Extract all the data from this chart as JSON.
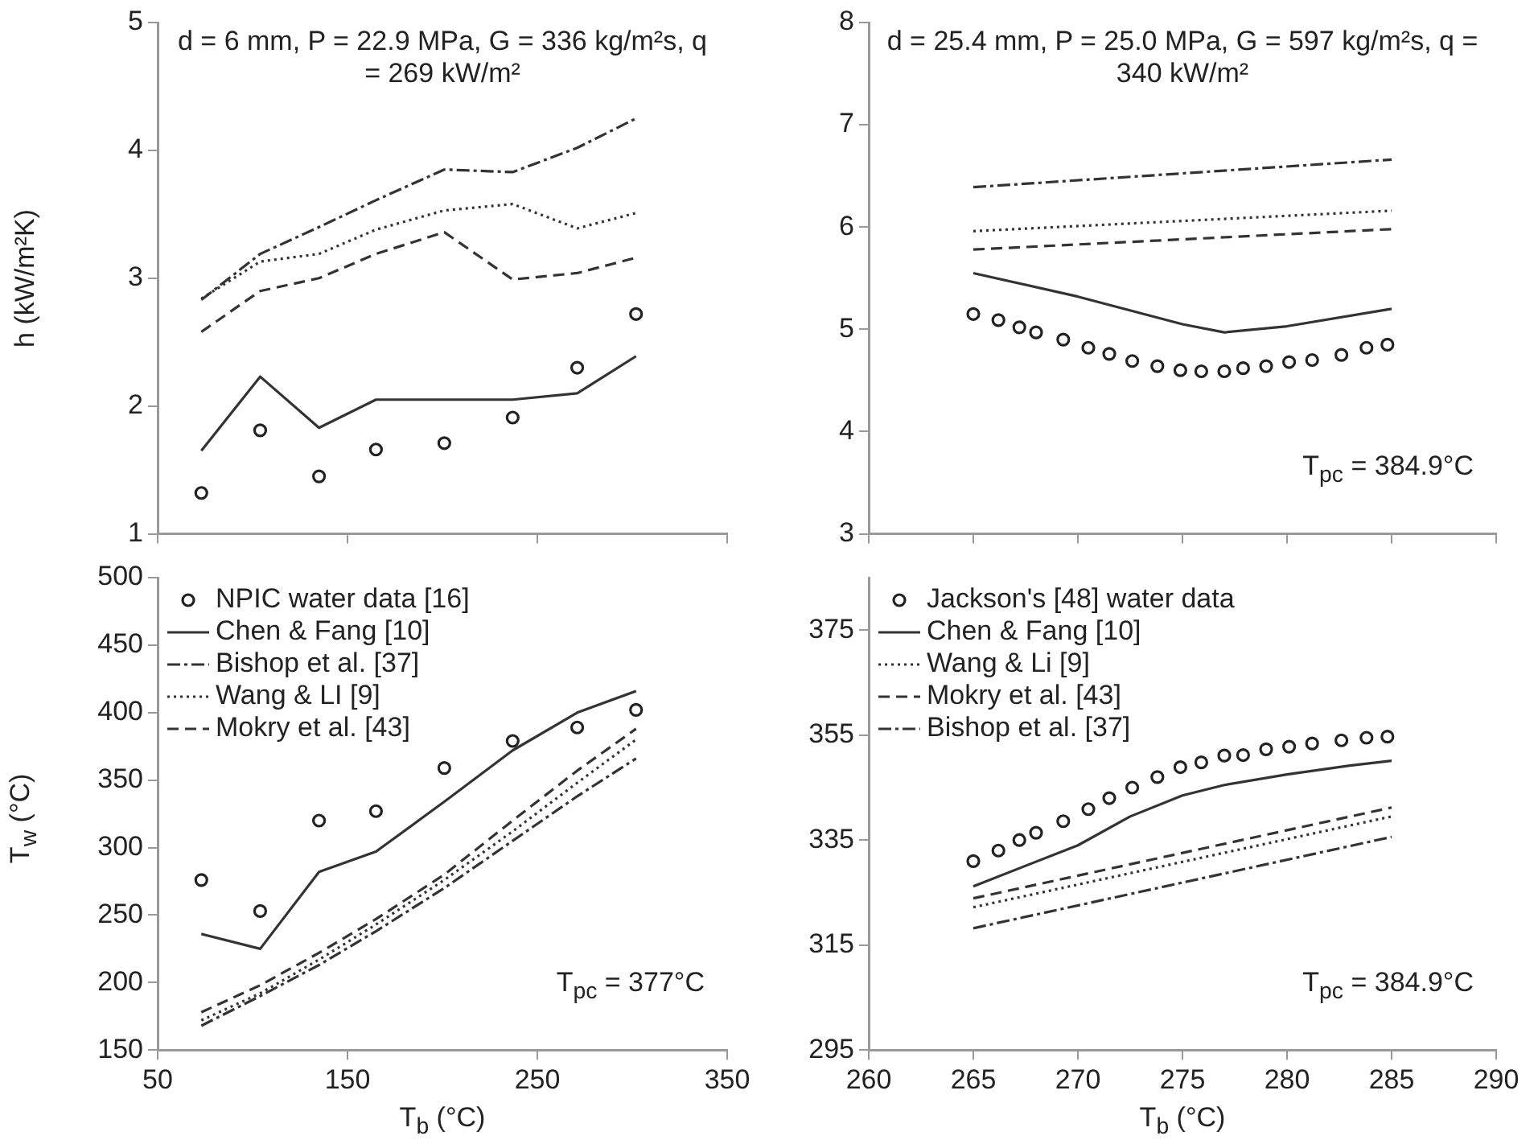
{
  "chart_data": [
    {
      "type": "line",
      "ylabel": "h (kW/m²K)",
      "annotations": [
        "d = 6 mm, P = 22.9 MPa, G = 336 kg/m²s, q = 269 kW/m²"
      ],
      "x": [
        73,
        104,
        135,
        165,
        201,
        237,
        271,
        302
      ],
      "series": [
        {
          "type": "scatter",
          "marker": "circle",
          "color": "#222222",
          "values": [
            1.32,
            1.81,
            1.45,
            1.66,
            1.71,
            1.91,
            2.3,
            2.72
          ]
        },
        {
          "line_style": "solid",
          "color": "#333333",
          "values": [
            1.65,
            2.23,
            1.83,
            2.05,
            2.05,
            2.05,
            2.1,
            2.39
          ]
        },
        {
          "line_style": "dashdot",
          "color": "#333333",
          "values": [
            2.83,
            3.19,
            3.4,
            3.61,
            3.85,
            3.83,
            4.02,
            4.25
          ]
        },
        {
          "line_style": "dotted",
          "color": "#333333",
          "values": [
            2.84,
            3.13,
            3.19,
            3.38,
            3.53,
            3.58,
            3.39,
            3.51
          ]
        },
        {
          "line_style": "dashed",
          "color": "#333333",
          "values": [
            2.58,
            2.9,
            3.0,
            3.19,
            3.36,
            2.99,
            3.04,
            3.16
          ]
        }
      ],
      "xlim": [
        50,
        350
      ],
      "xticks": [
        50,
        150,
        250,
        350
      ],
      "ylim": [
        1,
        5
      ],
      "yticks": [
        1,
        2,
        3,
        4,
        5
      ],
      "tick_labels": "y",
      "grid": false,
      "legend": false
    },
    {
      "type": "line",
      "annotations": [
        "d = 25.4 mm, P = 25.0 MPa, G = 597 kg/m²s, q = 340 kW/m²",
        "T$_{pc}$ = 384.9°C"
      ],
      "series": [
        {
          "type": "scatter",
          "marker": "circle",
          "color": "#222222",
          "x": [
            265,
            266.2,
            267.2,
            268,
            269.3,
            270.5,
            271.5,
            272.6,
            273.8,
            274.9,
            275.9,
            277,
            277.9,
            279,
            280.1,
            281.2,
            282.6,
            283.8,
            284.8
          ],
          "values": [
            5.15,
            5.09,
            5.02,
            4.97,
            4.9,
            4.82,
            4.76,
            4.69,
            4.64,
            4.6,
            4.59,
            4.59,
            4.62,
            4.64,
            4.68,
            4.7,
            4.75,
            4.82,
            4.85
          ]
        },
        {
          "line_style": "solid",
          "color": "#333333",
          "x": [
            265,
            270,
            275,
            277,
            280,
            285
          ],
          "values": [
            5.55,
            5.32,
            5.05,
            4.97,
            5.03,
            5.2
          ]
        },
        {
          "line_style": "dashdot",
          "color": "#333333",
          "x": [
            265,
            285
          ],
          "values": [
            6.39,
            6.66
          ]
        },
        {
          "line_style": "dotted",
          "color": "#333333",
          "x": [
            265,
            285
          ],
          "values": [
            5.96,
            6.16
          ]
        },
        {
          "line_style": "dashed",
          "color": "#333333",
          "x": [
            265,
            285
          ],
          "values": [
            5.78,
            5.98
          ]
        }
      ],
      "xlim": [
        260,
        290
      ],
      "xticks": [
        260,
        265,
        270,
        275,
        280,
        285,
        290
      ],
      "ylim": [
        3,
        8
      ],
      "yticks": [
        3,
        4,
        5,
        6,
        7,
        8
      ],
      "tick_labels": "y",
      "grid": false,
      "legend": false
    },
    {
      "type": "line",
      "xlabel": "T$_{b}$ (°C)",
      "ylabel": "T$_{w}$ (°C)",
      "annotations": [
        "T$_{pc}$ = 377°C"
      ],
      "x": [
        73,
        104,
        135,
        165,
        201,
        237,
        271,
        302
      ],
      "series": [
        {
          "name": "NPIC water data [16]",
          "type": "scatter",
          "marker": "circle",
          "color": "#222222",
          "values": [
            276,
            253,
            320,
            327,
            359,
            379,
            389,
            402
          ]
        },
        {
          "name": "Chen & Fang [10]",
          "line_style": "solid",
          "color": "#333333",
          "values": [
            236,
            225,
            282,
            297,
            334,
            372,
            400,
            416
          ]
        },
        {
          "name": "Bishop et al. [37]",
          "line_style": "dashdot",
          "color": "#333333",
          "values": [
            168,
            190,
            213,
            238,
            270,
            305,
            338,
            366
          ]
        },
        {
          "name": "Wang & LI [9]",
          "line_style": "dotted",
          "color": "#333333",
          "values": [
            172,
            192,
            217,
            243,
            276,
            312,
            348,
            380
          ]
        },
        {
          "name": "Mokry et al. [43]",
          "line_style": "dashed",
          "color": "#333333",
          "values": [
            178,
            198,
            222,
            247,
            280,
            320,
            357,
            388
          ]
        }
      ],
      "xlim": [
        50,
        350
      ],
      "xticks": [
        50,
        150,
        250,
        350
      ],
      "ylim": [
        150,
        500
      ],
      "yticks": [
        150,
        200,
        250,
        300,
        350,
        400,
        450,
        500
      ],
      "grid": false,
      "legend": "top left"
    },
    {
      "type": "line",
      "xlabel": "T$_{b}$ (°C)",
      "annotations": [
        "T$_{pc}$ = 384.9°C"
      ],
      "series": [
        {
          "name": "Jackson's [48] water data",
          "type": "scatter",
          "marker": "circle",
          "color": "#222222",
          "x": [
            265,
            266.2,
            267.2,
            268,
            269.3,
            270.5,
            271.5,
            272.6,
            273.8,
            274.9,
            275.9,
            277,
            277.9,
            279,
            280.1,
            281.2,
            282.6,
            283.8,
            284.8
          ],
          "values": [
            331,
            333,
            335,
            336.4,
            338.6,
            340.9,
            343,
            345,
            347,
            348.9,
            349.8,
            351.1,
            351.2,
            352.3,
            352.8,
            353.4,
            354,
            354.5,
            354.7
          ]
        },
        {
          "name": "Chen & Fang [10]",
          "line_style": "solid",
          "color": "#333333",
          "x": [
            265,
            270,
            272.5,
            275,
            277,
            280,
            283,
            285
          ],
          "values": [
            326.2,
            334,
            339.5,
            343.5,
            345.5,
            347.5,
            349.2,
            350.1
          ]
        },
        {
          "name": "Wang & Li [9]",
          "line_style": "dotted",
          "color": "#333333",
          "x": [
            265,
            285
          ],
          "values": [
            322.2,
            339.5
          ]
        },
        {
          "name": "Mokry et al. [43]",
          "line_style": "dashed",
          "color": "#333333",
          "x": [
            265,
            285
          ],
          "values": [
            323.9,
            341.2
          ]
        },
        {
          "name": "Bishop et al. [37]",
          "line_style": "dashdot",
          "color": "#333333",
          "x": [
            265,
            285
          ],
          "values": [
            318.2,
            335.6
          ]
        }
      ],
      "xlim": [
        260,
        290
      ],
      "xticks": [
        260,
        265,
        270,
        275,
        280,
        285,
        290
      ],
      "ylim": [
        295,
        385
      ],
      "yticks": [
        295,
        315,
        335,
        355,
        375
      ],
      "grid": false,
      "legend": "top left"
    }
  ]
}
